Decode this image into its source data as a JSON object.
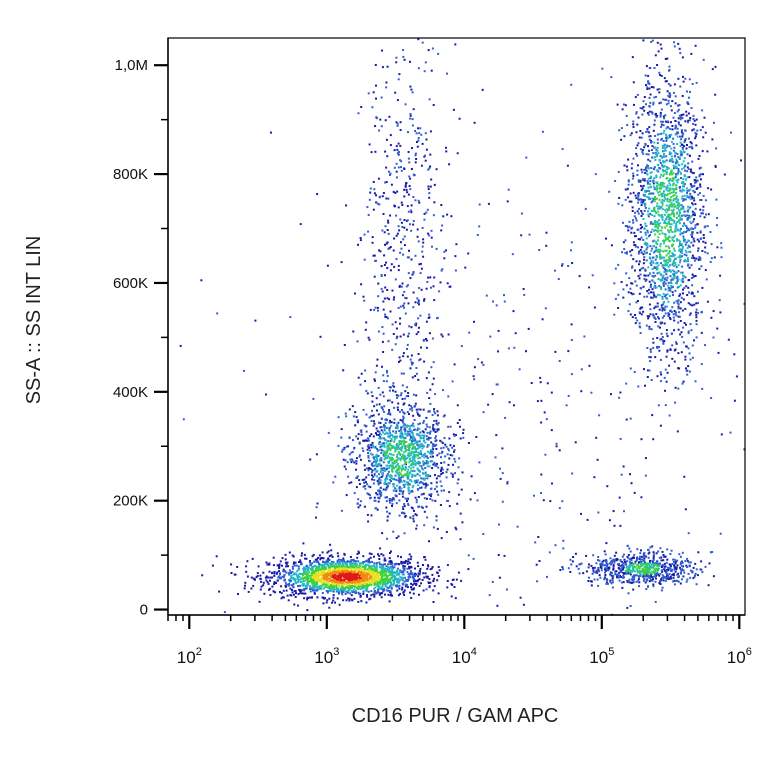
{
  "chart_data": {
    "type": "scatter",
    "subtype": "density-dot-plot",
    "title": "",
    "xlabel": "CD16 PUR / GAM APC",
    "ylabel": "SS-A :: SS INT LIN",
    "x_scale": "log",
    "y_scale": "linear",
    "xlim": [
      70,
      1100000
    ],
    "ylim": [
      -10000,
      1050000
    ],
    "grid": false,
    "legend": "none",
    "x_ticks": [
      {
        "value": 100,
        "base": "10",
        "exp": "2"
      },
      {
        "value": 1000,
        "base": "10",
        "exp": "3"
      },
      {
        "value": 10000,
        "base": "10",
        "exp": "4"
      },
      {
        "value": 100000,
        "base": "10",
        "exp": "5"
      },
      {
        "value": 1000000,
        "base": "10",
        "exp": "6"
      }
    ],
    "y_ticks": [
      {
        "value": 0,
        "label": "0"
      },
      {
        "value": 200000,
        "label": "200K"
      },
      {
        "value": 400000,
        "label": "400K"
      },
      {
        "value": 600000,
        "label": "600K"
      },
      {
        "value": 800000,
        "label": "800K"
      },
      {
        "value": 1000000,
        "label": "1,0M"
      }
    ],
    "density_colors": [
      "#1a1aa6",
      "#2f5fd0",
      "#20b8c8",
      "#3ed13e",
      "#e8e020",
      "#f08a10",
      "#e01818"
    ],
    "populations": [
      {
        "name": "",
        "x_center": 1400,
        "x_log_spread": 0.28,
        "y_center": 60000,
        "y_spread": 18000,
        "weight": 0.3
      },
      {
        "name": "",
        "x_center": 3500,
        "x_log_spread": 0.18,
        "y_center": 280000,
        "y_spread": 50000,
        "weight": 0.18
      },
      {
        "name": "",
        "x_center": 3500,
        "x_log_spread": 0.15,
        "y_center": 650000,
        "y_spread": 200000,
        "weight": 0.08
      },
      {
        "name": "",
        "x_center": 300000,
        "x_log_spread": 0.14,
        "y_center": 720000,
        "y_spread": 130000,
        "weight": 0.28
      },
      {
        "name": "",
        "x_center": 200000,
        "x_log_spread": 0.2,
        "y_center": 75000,
        "y_spread": 15000,
        "weight": 0.1
      },
      {
        "name": "",
        "x_center": 30000,
        "x_log_spread": 0.9,
        "y_center": 350000,
        "y_spread": 300000,
        "weight": 0.06
      }
    ]
  }
}
